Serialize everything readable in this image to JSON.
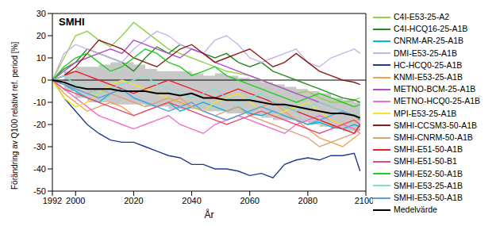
{
  "chart_data": {
    "type": "line",
    "annotation": "SMHI",
    "x_label": "År",
    "y_label": "Förändring av Q100 relativt ref. period [%]",
    "x": [
      1992,
      1996,
      2000,
      2004,
      2008,
      2012,
      2016,
      2020,
      2024,
      2028,
      2032,
      2036,
      2040,
      2044,
      2048,
      2052,
      2056,
      2060,
      2064,
      2068,
      2072,
      2076,
      2080,
      2084,
      2088,
      2092,
      2096,
      2098
    ],
    "xlim": [
      1992,
      2100
    ],
    "xticks": [
      1992,
      2000,
      2020,
      2040,
      2060,
      2080,
      2100
    ],
    "ylim": [
      -50,
      30
    ],
    "yticks": [
      -50,
      -40,
      -30,
      -20,
      -10,
      0,
      10,
      20,
      30
    ],
    "grid": false,
    "legend": "right",
    "reference_line": 0,
    "band": {
      "color": "#c8c8c8",
      "lower": [
        0,
        -5,
        -8,
        -10,
        -10,
        -11,
        -11,
        -11,
        -12,
        -12,
        -13,
        -13,
        -13,
        -14,
        -14,
        -15,
        -15,
        -16,
        -17,
        -18,
        -18,
        -19,
        -20,
        -21,
        -22,
        -23,
        -23,
        -24
      ],
      "upper": [
        0,
        4,
        6,
        6,
        7,
        8,
        8,
        7,
        5,
        4,
        4,
        4,
        3,
        2,
        3,
        2,
        1,
        0,
        -1,
        -2,
        -3,
        -4,
        -5,
        -6,
        -8,
        -9,
        -10,
        -11
      ]
    },
    "series": [
      {
        "name": "C4I-E53-25-A2",
        "color": "#8fd14f",
        "values": [
          0,
          10,
          20,
          22,
          18,
          15,
          20,
          26,
          22,
          18,
          14,
          12,
          10,
          8,
          6,
          4,
          3,
          2,
          0,
          -2,
          -4,
          -6,
          -5,
          -8,
          -10,
          -10,
          -9,
          -8
        ]
      },
      {
        "name": "C4I-HCQ16-25-A1B",
        "color": "#228b22",
        "values": [
          0,
          5,
          8,
          14,
          12,
          10,
          8,
          4,
          10,
          15,
          12,
          16,
          14,
          12,
          10,
          12,
          8,
          6,
          8,
          4,
          2,
          0,
          -2,
          -4,
          -6,
          -8,
          -9,
          -10
        ]
      },
      {
        "name": "CNRM-AR-25-A1B",
        "color": "#00bcd4",
        "values": [
          0,
          -2,
          -5,
          -8,
          -10,
          -6,
          -4,
          -8,
          -10,
          -12,
          -10,
          -14,
          -12,
          -10,
          -12,
          -14,
          -12,
          -15,
          -16,
          -14,
          -16,
          -18,
          -20,
          -19,
          -21,
          -22,
          -20,
          -21
        ]
      },
      {
        "name": "DMI-E53-25-A1B",
        "color": "#c8b4e6",
        "values": [
          0,
          12,
          16,
          14,
          12,
          10,
          8,
          14,
          18,
          22,
          20,
          16,
          14,
          12,
          18,
          20,
          16,
          10,
          8,
          10,
          12,
          14,
          8,
          6,
          10,
          12,
          14,
          12
        ]
      },
      {
        "name": "HC-HCQ0-25-A1B",
        "color": "#1f3a93",
        "values": [
          0,
          -8,
          -14,
          -20,
          -24,
          -27,
          -28,
          -28,
          -30,
          -32,
          -34,
          -35,
          -38,
          -38,
          -40,
          -40,
          -41,
          -43,
          -42,
          -44,
          -38,
          -36,
          -35,
          -36,
          -34,
          -34,
          -33,
          -41
        ]
      },
      {
        "name": "KNMI-E53-25-A1B",
        "color": "#f5a04a",
        "values": [
          0,
          -6,
          -10,
          -14,
          -12,
          -10,
          -12,
          -16,
          -14,
          -12,
          -10,
          -8,
          -12,
          -14,
          -16,
          -18,
          -16,
          -14,
          -12,
          -10,
          -14,
          -18,
          -22,
          -26,
          -28,
          -30,
          -26,
          -24
        ]
      },
      {
        "name": "METNO-BCM-25-A1B",
        "color": "#b04fc8",
        "values": [
          0,
          4,
          8,
          10,
          12,
          14,
          12,
          18,
          16,
          14,
          12,
          10,
          14,
          12,
          8,
          6,
          4,
          2,
          0,
          -2,
          -4,
          -6,
          -8,
          -10,
          -12,
          -14,
          -16,
          -18
        ]
      },
      {
        "name": "METNO-HCQ0-25-A1B",
        "color": "#f06ec8",
        "values": [
          0,
          -4,
          -8,
          -12,
          -16,
          -18,
          -20,
          -22,
          -20,
          -18,
          -16,
          -20,
          -22,
          -24,
          -20,
          -18,
          -16,
          -18,
          -20,
          -22,
          -24,
          -20,
          -18,
          -16,
          -18,
          -20,
          -22,
          -24
        ]
      },
      {
        "name": "MPI-E53-25-A1B",
        "color": "#f5e52a",
        "values": [
          0,
          -8,
          -12,
          -10,
          -6,
          -2,
          0,
          -2,
          -4,
          -6,
          -8,
          -10,
          -12,
          -14,
          -10,
          -8,
          -6,
          -10,
          -14,
          -16,
          -14,
          -12,
          -10,
          -14,
          -18,
          -20,
          -18,
          -16
        ]
      },
      {
        "name": "SMHI-CCSM3-50-A1B",
        "color": "#8b1a1a",
        "values": [
          0,
          2,
          6,
          12,
          18,
          16,
          14,
          10,
          8,
          6,
          10,
          14,
          16,
          12,
          8,
          10,
          12,
          14,
          10,
          6,
          8,
          12,
          8,
          4,
          2,
          0,
          -1,
          -2
        ]
      },
      {
        "name": "SMHI-CNRM-50-A1B",
        "color": "#d2a679",
        "values": [
          0,
          -2,
          -4,
          -6,
          -4,
          -6,
          -8,
          -10,
          -12,
          -10,
          -8,
          -10,
          -12,
          -14,
          -16,
          -14,
          -12,
          -16,
          -18,
          -20,
          -22,
          -24,
          -26,
          -30,
          -28,
          -26,
          -24,
          -22
        ]
      },
      {
        "name": "SMHI-E51-50-A1B",
        "color": "#e8202a",
        "values": [
          0,
          2,
          4,
          2,
          0,
          -2,
          -4,
          -6,
          -4,
          -2,
          0,
          -2,
          -4,
          -6,
          -8,
          -6,
          -4,
          -6,
          -8,
          -10,
          -12,
          -14,
          -16,
          -18,
          -20,
          -22,
          -24,
          -20
        ]
      },
      {
        "name": "SMHI-E51-50-B1",
        "color": "#e84a7a",
        "values": [
          0,
          -4,
          -6,
          -8,
          -10,
          -12,
          -14,
          -16,
          -14,
          -12,
          -10,
          -12,
          -14,
          -16,
          -18,
          -20,
          -18,
          -16,
          -14,
          -16,
          -18,
          -20,
          -22,
          -24,
          -22,
          -20,
          -18,
          -20
        ]
      },
      {
        "name": "SMHI-E52-50-A1B",
        "color": "#22cc22",
        "values": [
          0,
          6,
          10,
          12,
          8,
          4,
          6,
          10,
          14,
          12,
          8,
          6,
          2,
          4,
          6,
          2,
          0,
          -2,
          -4,
          -6,
          -8,
          -10,
          -8,
          -6,
          -8,
          -10,
          -12,
          -11
        ]
      },
      {
        "name": "SMHI-E53-25-A1B",
        "color": "#7fe0d0",
        "values": [
          0,
          2,
          -2,
          -4,
          -6,
          -4,
          -2,
          0,
          2,
          -2,
          -4,
          -6,
          -8,
          -6,
          -4,
          -8,
          -10,
          -8,
          -6,
          -10,
          -12,
          -14,
          -12,
          -10,
          -12,
          -14,
          -16,
          -14
        ]
      },
      {
        "name": "SMHI-E53-50-A1B",
        "color": "#5aa0e6",
        "values": [
          0,
          -2,
          -4,
          -6,
          -8,
          -6,
          -4,
          -8,
          -10,
          -12,
          -14,
          -12,
          -10,
          -14,
          -16,
          -18,
          -16,
          -14,
          -12,
          -14,
          -16,
          -18,
          -20,
          -18,
          -16,
          -14,
          -16,
          -18
        ]
      },
      {
        "name": "Medelvärde",
        "color": "#000000",
        "values": [
          0,
          -1,
          -3,
          -4,
          -4,
          -4,
          -5,
          -5,
          -5,
          -6,
          -6,
          -7,
          -6,
          -8,
          -8,
          -9,
          -9,
          -9,
          -10,
          -11,
          -11,
          -12,
          -13,
          -14,
          -15,
          -15,
          -16,
          -17
        ]
      }
    ]
  }
}
